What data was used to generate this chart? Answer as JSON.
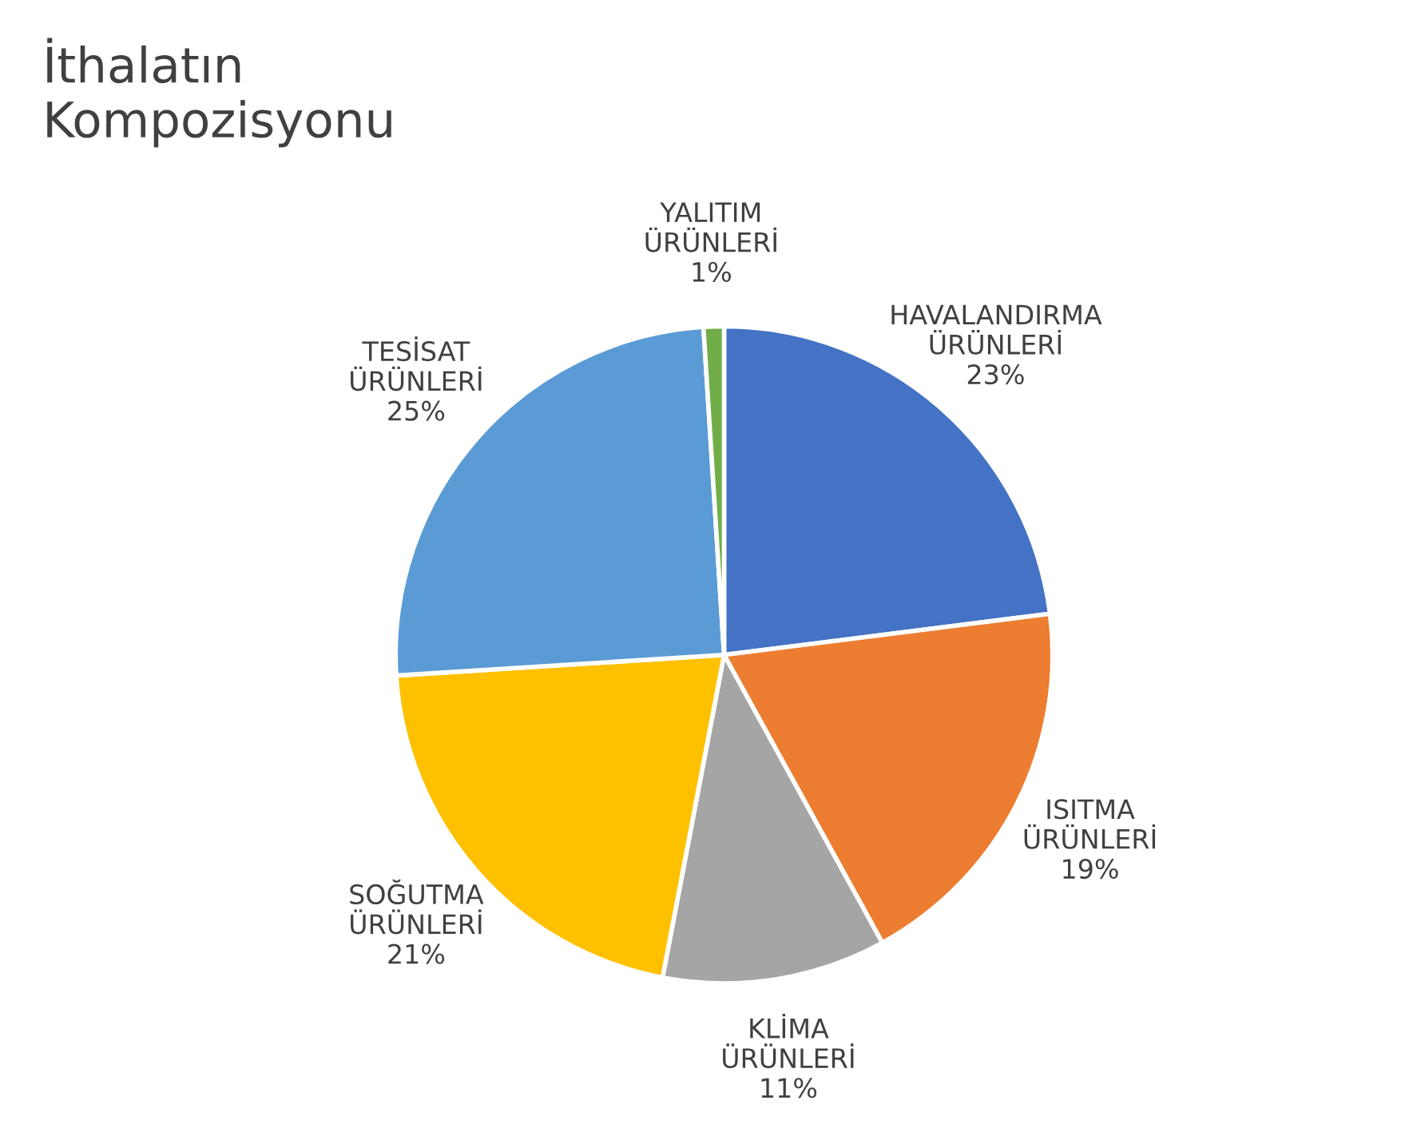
{
  "chart_data": {
    "type": "pie",
    "title": "İthalatın\nKompozisyonu",
    "categories": [
      "HAVALANDIRMA\nÜRÜNLERİ",
      "ISITMA\nÜRÜNLERİ",
      "KLİMA\nÜRÜNLERİ",
      "SOĞUTMA\nÜRÜNLERİ",
      "TESİSAT\nÜRÜNLERİ",
      "YALITIM\nÜRÜNLERİ"
    ],
    "values": [
      23,
      19,
      11,
      21,
      25,
      1
    ],
    "colors": [
      "#4472c4",
      "#ed7d31",
      "#a5a5a5",
      "#ffc000",
      "#5b9bd5",
      "#70ad47"
    ],
    "value_labels": [
      "23%",
      "19%",
      "11%",
      "21%",
      "25%",
      "1%"
    ],
    "legend": false
  }
}
